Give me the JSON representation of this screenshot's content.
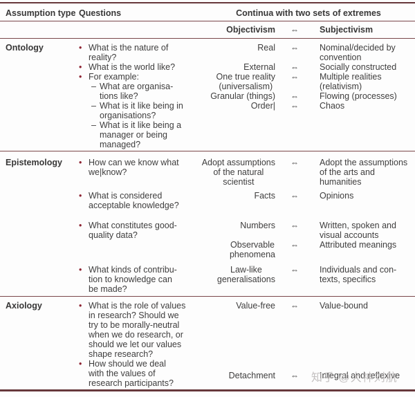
{
  "markers": {
    "bullet": "•",
    "dash": "–",
    "arrow": "⇔"
  },
  "colors": {
    "rule": "#7a4649",
    "heavy_rule": "#67383b",
    "bullet": "#8d2332",
    "text": "#3e3d3d",
    "watermark": "#b5b2b2"
  },
  "header": {
    "col1": "Assumption type",
    "col2": "Questions",
    "col3": "Continua with two sets of extremes",
    "sub_left": "Objectivism",
    "sub_right": "Subjectivism"
  },
  "watermark": "知乎 @大神刘航",
  "sections": [
    {
      "name": "Ontology",
      "groups": [
        {
          "questions": [
            {
              "marker": "bullet",
              "lines": [
                "What is the nature of",
                "reality?"
              ]
            },
            {
              "marker": "bullet",
              "lines": [
                "What is the world like?"
              ]
            },
            {
              "marker": "bullet",
              "lines": [
                "For example:"
              ]
            },
            {
              "marker": "dash",
              "lines": [
                "What are organisa-",
                "tions like?"
              ]
            },
            {
              "marker": "dash",
              "lines": [
                "What is it like being in",
                "organisations?"
              ]
            },
            {
              "marker": "dash",
              "lines": [
                "What is it like being a",
                "manager or being",
                "managed?"
              ]
            }
          ],
          "continua": [
            {
              "left": [
                "Real"
              ],
              "right": [
                "Nominal/decided by",
                "convention"
              ]
            },
            {
              "left": [
                "External"
              ],
              "right": [
                "Socially constructed"
              ]
            },
            {
              "left": [
                "One true reality",
                "(universalism)"
              ],
              "right": [
                "Multiple realities",
                "(relativism)"
              ]
            },
            {
              "left": [
                "Granular (things)"
              ],
              "right": [
                "Flowing (processes)"
              ]
            },
            {
              "left": [
                "Order|"
              ],
              "right": [
                "Chaos"
              ]
            }
          ]
        }
      ]
    },
    {
      "name": "Epistemology",
      "groups": [
        {
          "questions": [
            {
              "marker": "bullet",
              "lines": [
                "How can we know what",
                "we|know?"
              ]
            }
          ],
          "continua": [
            {
              "left": [
                "Adopt assumptions",
                "of the natural",
                "scientist"
              ],
              "right": [
                "Adopt the assumptions",
                "of the arts and",
                "humanities"
              ]
            }
          ]
        },
        {
          "questions": [
            {
              "marker": "bullet",
              "lines": [
                "What is considered",
                "acceptable knowledge?"
              ]
            }
          ],
          "continua": [
            {
              "left": [
                "Facts"
              ],
              "right": [
                "Opinions"
              ]
            }
          ]
        },
        {
          "questions": [
            {
              "marker": "bullet",
              "lines": [
                "What constitutes good-",
                "quality data?"
              ]
            }
          ],
          "continua": [
            {
              "left": [
                "Numbers"
              ],
              "right": [
                "Written, spoken and",
                "visual accounts"
              ]
            },
            {
              "left": [
                "Observable",
                "phenomena"
              ],
              "right": [
                "Attributed meanings"
              ]
            }
          ]
        },
        {
          "questions": [
            {
              "marker": "bullet",
              "lines": [
                "What kinds of contribu-",
                "tion to knowledge can",
                "be made?"
              ]
            }
          ],
          "continua": [
            {
              "left": [
                "Law-like",
                "generalisations"
              ],
              "right": [
                "Individuals and con-",
                "texts, specifics"
              ]
            }
          ]
        }
      ]
    },
    {
      "name": "Axiology",
      "groups": [
        {
          "questions": [
            {
              "marker": "bullet",
              "lines": [
                "What is the role of values",
                "in research? Should we",
                "try to be morally-neutral",
                "when we do research, or",
                "should we let our values",
                "shape research?"
              ]
            }
          ],
          "continua": [
            {
              "left": [
                "Value-free"
              ],
              "right": [
                "Value-bound"
              ]
            }
          ]
        },
        {
          "questions": [
            {
              "marker": "bullet",
              "lines": [
                "How should we deal",
                "with the values of",
                "research participants?"
              ]
            }
          ],
          "continua": [
            {
              "left": [
                "Detachment"
              ],
              "right": [
                "Integral and reflexive"
              ],
              "watermark": true
            }
          ]
        }
      ]
    }
  ]
}
